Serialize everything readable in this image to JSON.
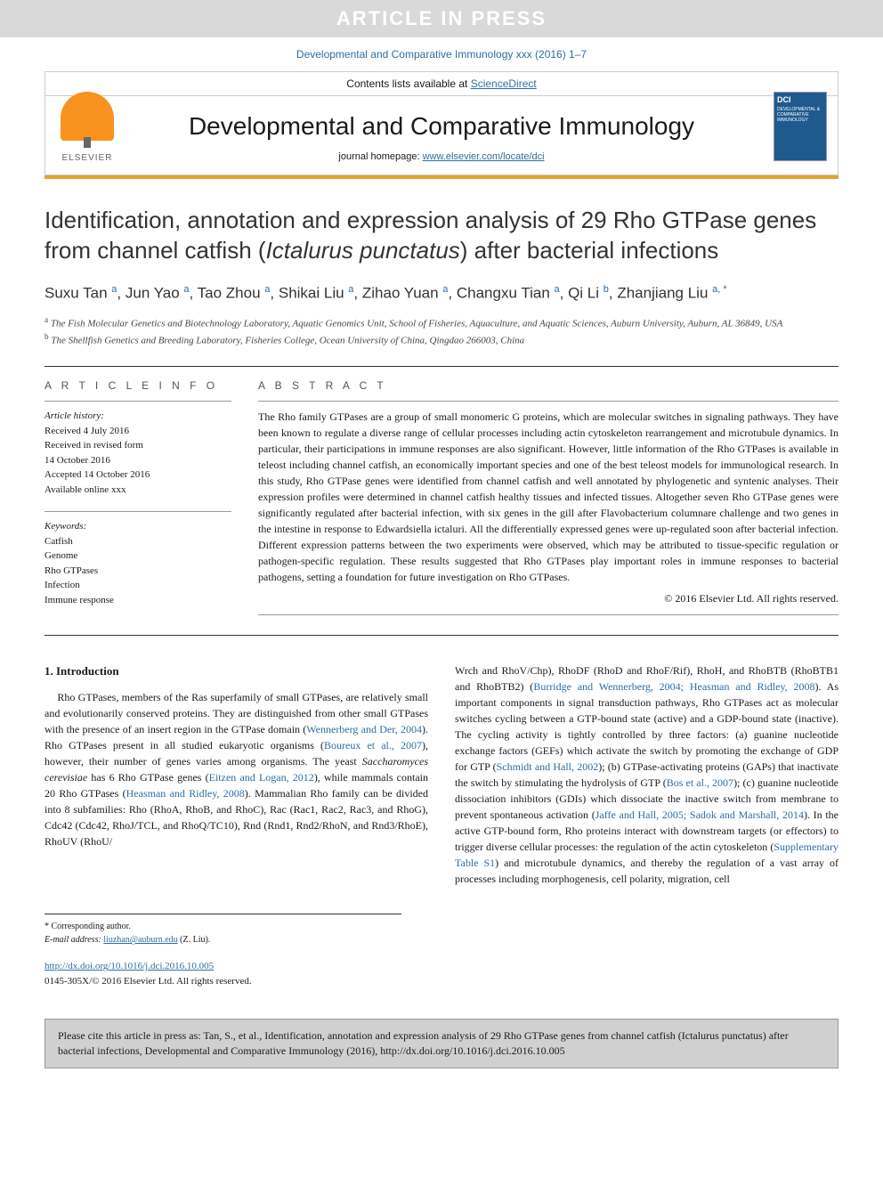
{
  "banner": {
    "text": "ARTICLE IN PRESS"
  },
  "citation_top": "Developmental and Comparative Immunology xxx (2016) 1–7",
  "header": {
    "contents_prefix": "Contents lists available at ",
    "contents_link": "ScienceDirect",
    "journal_name": "Developmental and Comparative Immunology",
    "homepage_prefix": "journal homepage: ",
    "homepage_link": "www.elsevier.com/locate/dci",
    "publisher": "ELSEVIER",
    "cover_label": "DCI",
    "cover_sub": "DEVELOPMENTAL & COMPARATIVE IMMUNOLOGY"
  },
  "title_parts": {
    "pre": "Identification, annotation and expression analysis of 29 Rho GTPase genes from channel catfish (",
    "italic": "Ictalurus punctatus",
    "post": ") after bacterial infections"
  },
  "authors_html": "Suxu Tan <sup>a</sup>, Jun Yao <sup>a</sup>, Tao Zhou <sup>a</sup>, Shikai Liu <sup>a</sup>, Zihao Yuan <sup>a</sup>, Changxu Tian <sup>a</sup>, Qi Li <sup>b</sup>, Zhanjiang Liu <sup>a, *</sup>",
  "affiliations": {
    "a": "The Fish Molecular Genetics and Biotechnology Laboratory, Aquatic Genomics Unit, School of Fisheries, Aquaculture, and Aquatic Sciences, Auburn University, Auburn, AL 36849, USA",
    "b": "The Shellfish Genetics and Breeding Laboratory, Fisheries College, Ocean University of China, Qingdao 266003, China"
  },
  "article_info": {
    "label": "A R T I C L E   I N F O",
    "history_label": "Article history:",
    "history": [
      "Received 4 July 2016",
      "Received in revised form",
      "14 October 2016",
      "Accepted 14 October 2016",
      "Available online xxx"
    ],
    "keywords_label": "Keywords:",
    "keywords": [
      "Catfish",
      "Genome",
      "Rho GTPases",
      "Infection",
      "Immune response"
    ]
  },
  "abstract": {
    "label": "A B S T R A C T",
    "text": "The Rho family GTPases are a group of small monomeric G proteins, which are molecular switches in signaling pathways. They have been known to regulate a diverse range of cellular processes including actin cytoskeleton rearrangement and microtubule dynamics. In particular, their participations in immune responses are also significant. However, little information of the Rho GTPases is available in teleost including channel catfish, an economically important species and one of the best teleost models for immunological research. In this study, Rho GTPase genes were identified from channel catfish and well annotated by phylogenetic and syntenic analyses. Their expression profiles were determined in channel catfish healthy tissues and infected tissues. Altogether seven Rho GTPase genes were significantly regulated after bacterial infection, with six genes in the gill after Flavobacterium columnare challenge and two genes in the intestine in response to Edwardsiella ictaluri. All the differentially expressed genes were up-regulated soon after bacterial infection. Different expression patterns between the two experiments were observed, which may be attributed to tissue-specific regulation or pathogen-specific regulation. These results suggested that Rho GTPases play important roles in immune responses to bacterial pathogens, setting a foundation for future investigation on Rho GTPases.",
    "copyright": "© 2016 Elsevier Ltd. All rights reserved."
  },
  "body": {
    "section_title": "1. Introduction",
    "col1": "Rho GTPases, members of the Ras superfamily of small GTPases, are relatively small and evolutionarily conserved proteins. They are distinguished from other small GTPases with the presence of an insert region in the GTPase domain (Wennerberg and Der, 2004). Rho GTPases present in all studied eukaryotic organisms (Boureux et al., 2007), however, their number of genes varies among organisms. The yeast Saccharomyces cerevisiae has 6 Rho GTPase genes (Eitzen and Logan, 2012), while mammals contain 20 Rho GTPases (Heasman and Ridley, 2008). Mammalian Rho family can be divided into 8 subfamilies: Rho (RhoA, RhoB, and RhoC), Rac (Rac1, Rac2, Rac3, and RhoG), Cdc42 (Cdc42, RhoJ/TCL, and RhoQ/TC10), Rnd (Rnd1, Rnd2/RhoN, and Rnd3/RhoE), RhoUV (RhoU/",
    "col2": "Wrch and RhoV/Chp), RhoDF (RhoD and RhoF/Rif), RhoH, and RhoBTB (RhoBTB1 and RhoBTB2) (Burridge and Wennerberg, 2004; Heasman and Ridley, 2008). As important components in signal transduction pathways, Rho GTPases act as molecular switches cycling between a GTP-bound state (active) and a GDP-bound state (inactive). The cycling activity is tightly controlled by three factors: (a) guanine nucleotide exchange factors (GEFs) which activate the switch by promoting the exchange of GDP for GTP (Schmidt and Hall, 2002); (b) GTPase-activating proteins (GAPs) that inactivate the switch by stimulating the hydrolysis of GTP (Bos et al., 2007); (c) guanine nucleotide dissociation inhibitors (GDIs) which dissociate the inactive switch from membrane to prevent spontaneous activation (Jaffe and Hall, 2005; Sadok and Marshall, 2014). In the active GTP-bound form, Rho proteins interact with downstream targets (or effectors) to trigger diverse cellular processes: the regulation of the actin cytoskeleton (Supplementary Table S1) and microtubule dynamics, and thereby the regulation of a vast array of processes including morphogenesis, cell polarity, migration, cell"
  },
  "footnote": {
    "corr": "* Corresponding author.",
    "email_label": "E-mail address: ",
    "email": "liuzhan@auburn.edu",
    "email_name": " (Z. Liu)."
  },
  "doi": {
    "link": "http://dx.doi.org/10.1016/j.dci.2016.10.005",
    "issn": "0145-305X/© 2016 Elsevier Ltd. All rights reserved."
  },
  "cite_box": {
    "text": "Please cite this article in press as: Tan, S., et al., Identification, annotation and expression analysis of 29 Rho GTPase genes from channel catfish (Ictalurus punctatus) after bacterial infections, Developmental and Comparative Immunology (2016), http://dx.doi.org/10.1016/j.dci.2016.10.005"
  },
  "colors": {
    "link": "#2e6da4",
    "accent": "#e8a030",
    "banner_bg": "#d9d9d9",
    "cover_bg": "#1e5a8e"
  }
}
